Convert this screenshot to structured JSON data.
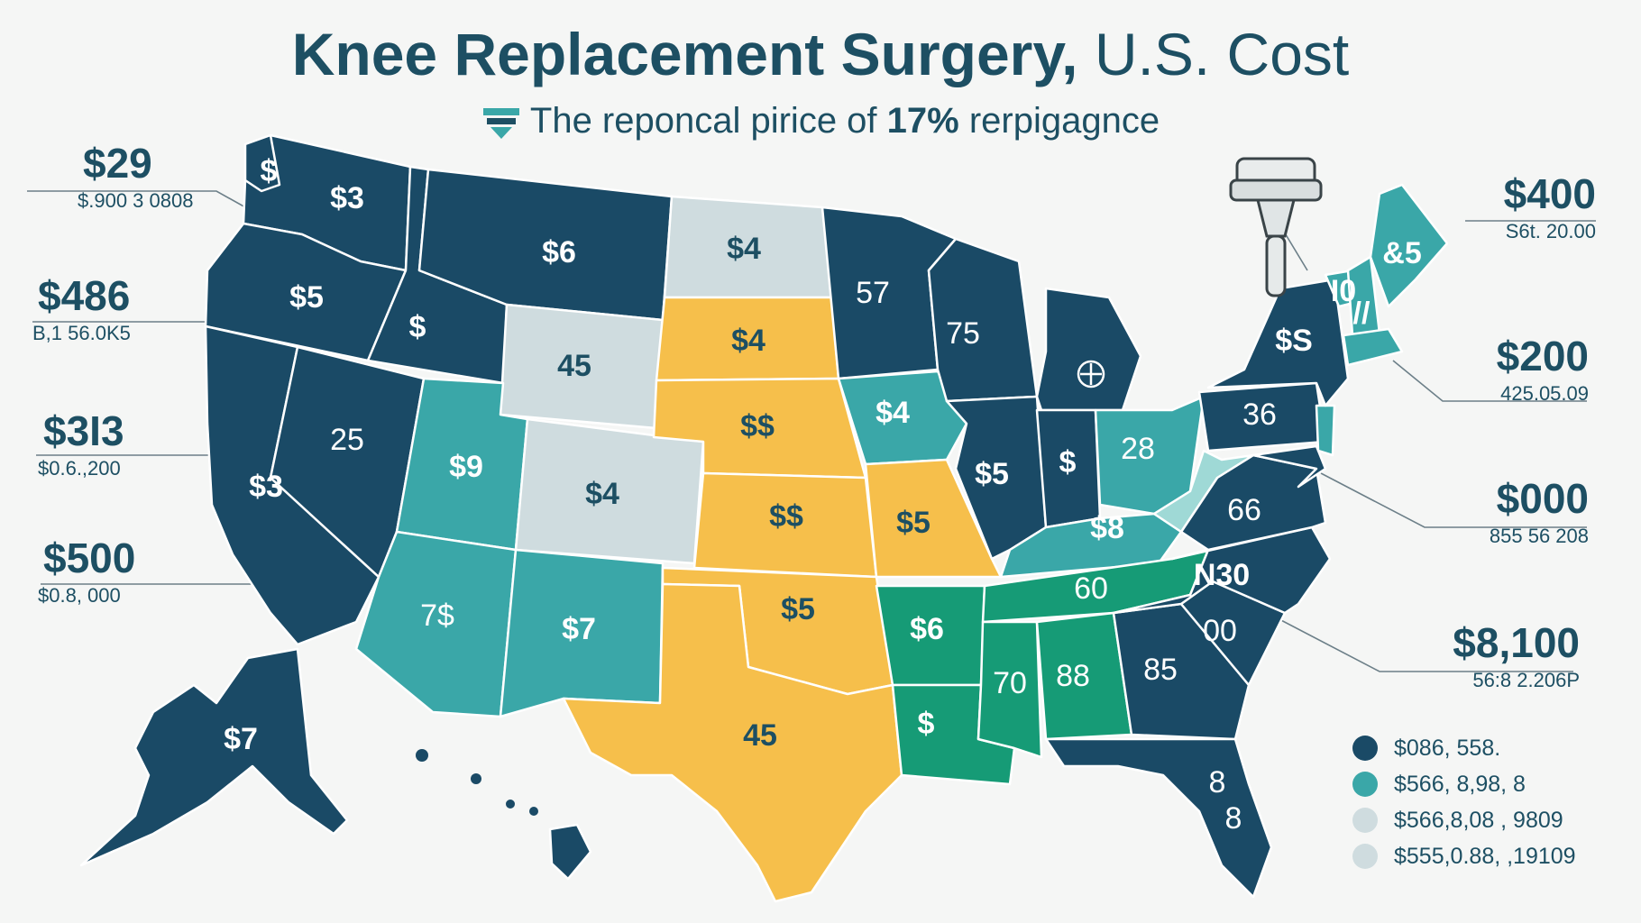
{
  "title": {
    "bold": "Knee Replacement Surgery,",
    "light": "U.S. Cost"
  },
  "subtitle": {
    "pre": "The reponcal pirice of ",
    "bold": "17%",
    "post": " rerpigagnce"
  },
  "colors": {
    "navy": "#1a4a66",
    "teal": "#3aa7a8",
    "light_gray": "#cfdcdf",
    "yellow": "#f6bf4b",
    "green": "#169b76",
    "mint": "#9fd9d6",
    "text": "#1d4f63"
  },
  "icons": {
    "knee_implant": "knee-implant-icon",
    "subtitle_marker": "triangle-marker-icon",
    "michigan_marker": "target-icon"
  },
  "callouts_left": [
    {
      "value": "$29",
      "sub": "$.900 3 0808"
    },
    {
      "value": "$486",
      "sub": "B,1 56.0K5"
    },
    {
      "value": "$3I3",
      "sub": "$0.6.,200"
    },
    {
      "value": "$500",
      "sub": "$0.8, 000"
    }
  ],
  "callouts_right": [
    {
      "value": "$400",
      "sub": "S6t. 20.00"
    },
    {
      "value": "$200",
      "sub": "425.05.09"
    },
    {
      "value": "$000",
      "sub": "855 56 208"
    },
    {
      "value": "$8,100",
      "sub": "56:8 2.206P"
    }
  ],
  "legend": [
    {
      "color": "#1a4a66",
      "label": "$086, 558."
    },
    {
      "color": "#3aa7a8",
      "label": "$566, 8,98, 8"
    },
    {
      "color": "#cfdcdf",
      "label": "$566,8,08 , 9809"
    },
    {
      "color": "#cfdcdf",
      "label": "$555,0.88, ,19109"
    }
  ],
  "states": [
    {
      "id": "WA",
      "label": "$3",
      "color": "navy"
    },
    {
      "id": "WA_top",
      "label": "$",
      "color": "navy"
    },
    {
      "id": "OR",
      "label": "$5",
      "color": "navy"
    },
    {
      "id": "CA",
      "label": "$3",
      "color": "navy"
    },
    {
      "id": "NV",
      "label": "25",
      "color": "navy"
    },
    {
      "id": "ID",
      "label": "$",
      "color": "navy"
    },
    {
      "id": "MT",
      "label": "$6",
      "color": "navy"
    },
    {
      "id": "WY",
      "label": "45",
      "color": "light_gray"
    },
    {
      "id": "UT",
      "label": "$9",
      "color": "teal"
    },
    {
      "id": "CO",
      "label": "$4",
      "color": "light_gray"
    },
    {
      "id": "AZ",
      "label": "7$",
      "color": "teal"
    },
    {
      "id": "NM",
      "label": "$7",
      "color": "teal"
    },
    {
      "id": "ND",
      "label": "$4",
      "color": "light_gray"
    },
    {
      "id": "SD",
      "label": "$4",
      "color": "yellow"
    },
    {
      "id": "NE",
      "label": "$$",
      "color": "yellow"
    },
    {
      "id": "KS",
      "label": "$$",
      "color": "yellow"
    },
    {
      "id": "OK",
      "label": "$5",
      "color": "yellow"
    },
    {
      "id": "TX",
      "label": "45",
      "color": "yellow"
    },
    {
      "id": "MN",
      "label": "57",
      "color": "navy"
    },
    {
      "id": "IA",
      "label": "$4",
      "color": "teal"
    },
    {
      "id": "MO",
      "label": "$5",
      "color": "yellow"
    },
    {
      "id": "AR",
      "label": "$6",
      "color": "green"
    },
    {
      "id": "LA",
      "label": "$",
      "color": "green"
    },
    {
      "id": "WI",
      "label": "75",
      "color": "navy"
    },
    {
      "id": "IL",
      "label": "$5",
      "color": "navy"
    },
    {
      "id": "MI",
      "label": "",
      "color": "navy"
    },
    {
      "id": "IN",
      "label": "$",
      "color": "navy"
    },
    {
      "id": "OH",
      "label": "28",
      "color": "teal"
    },
    {
      "id": "KY",
      "label": "$8",
      "color": "teal"
    },
    {
      "id": "TN",
      "label": "60",
      "color": "green"
    },
    {
      "id": "MS",
      "label": "70",
      "color": "green"
    },
    {
      "id": "AL",
      "label": "88",
      "color": "green"
    },
    {
      "id": "GA",
      "label": "85",
      "color": "navy"
    },
    {
      "id": "FL",
      "label": "8",
      "color": "navy"
    },
    {
      "id": "FL2",
      "label": "8",
      "color": "navy"
    },
    {
      "id": "SC",
      "label": "00",
      "color": "navy"
    },
    {
      "id": "NC",
      "label": "N30",
      "color": "navy"
    },
    {
      "id": "VA",
      "label": "66",
      "color": "navy"
    },
    {
      "id": "WV",
      "label": "",
      "color": "mint"
    },
    {
      "id": "PA",
      "label": "36",
      "color": "navy"
    },
    {
      "id": "NY",
      "label": "$S",
      "color": "navy"
    },
    {
      "id": "NJ",
      "label": "",
      "color": "teal"
    },
    {
      "id": "VT",
      "label": "I0",
      "color": "teal"
    },
    {
      "id": "NH",
      "label": "//",
      "color": "teal"
    },
    {
      "id": "ME",
      "label": "&5",
      "color": "teal"
    },
    {
      "id": "MA",
      "label": "",
      "color": "teal"
    },
    {
      "id": "MD",
      "label": "",
      "color": "navy"
    },
    {
      "id": "AK",
      "label": "$7",
      "color": "navy"
    },
    {
      "id": "HI",
      "label": "",
      "color": "navy"
    }
  ]
}
